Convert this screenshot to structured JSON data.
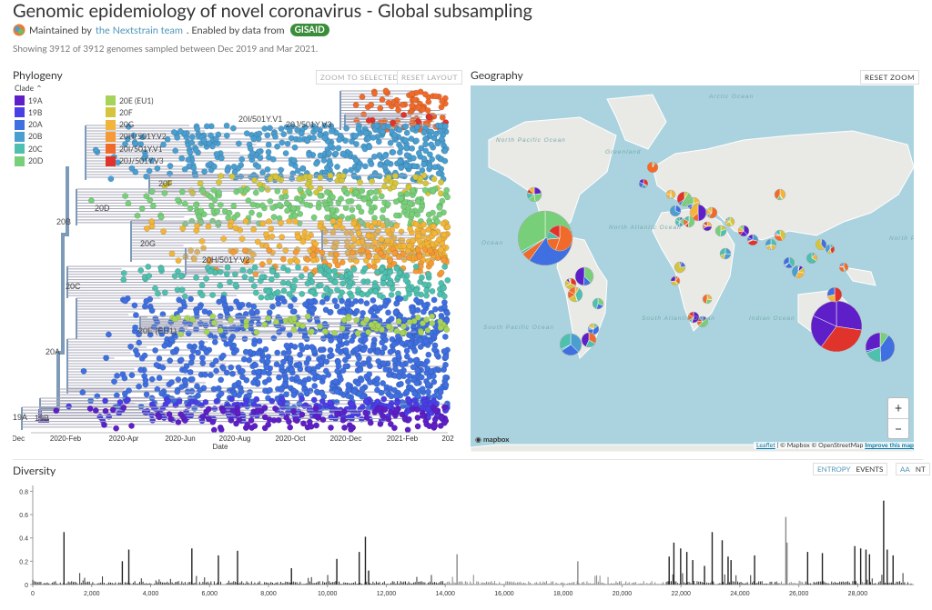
{
  "header": {
    "title": "Genomic epidemiology of novel coronavirus - Global subsampling",
    "maintained_prefix": "Maintained by",
    "maintainer": "the Nextstrain team",
    "enabled_by": ". Enabled by data from",
    "gisaid": "GISAID",
    "showing": "Showing 3912 of 3912 genomes sampled between Dec 2019 and Mar 2021."
  },
  "phylogeny": {
    "title": "Phylogeny",
    "zoom_btn": "ZOOM TO SELECTED",
    "reset_btn": "RESET LAYOUT",
    "legend_title": "Clade",
    "legend": [
      {
        "label": "19A",
        "color": "#5e1fc8"
      },
      {
        "label": "19B",
        "color": "#4a3fe6"
      },
      {
        "label": "20A",
        "color": "#3f6fe0"
      },
      {
        "label": "20B",
        "color": "#4a9ed0"
      },
      {
        "label": "20C",
        "color": "#4fbfae"
      },
      {
        "label": "20D",
        "color": "#78cf7a"
      },
      {
        "label": "20E (EU1)",
        "color": "#a6d45a"
      },
      {
        "label": "20F",
        "color": "#d4c53c"
      },
      {
        "label": "20G",
        "color": "#f2b53a"
      },
      {
        "label": "20H/501Y.V2",
        "color": "#f59a34"
      },
      {
        "label": "20I/501Y.V1",
        "color": "#f06b2b"
      },
      {
        "label": "20J/501Y.V3",
        "color": "#e0332c"
      }
    ],
    "clade_labels": [
      "20I/501Y.V1",
      "20J/501Y.V3",
      "20F",
      "20D",
      "20B",
      "20G",
      "20H/501Y.V2",
      "20C",
      "20E (EU1)",
      "20A",
      "19A",
      "19B"
    ],
    "x_ticks": [
      "Dec",
      "2020-Feb",
      "2020-Apr",
      "2020-Jun",
      "2020-Aug",
      "2020-Oct",
      "2020-Dec",
      "2021-Feb",
      "202"
    ],
    "x_label": "Date"
  },
  "geography": {
    "title": "Geography",
    "reset_btn": "RESET ZOOM",
    "labels": [
      "Arctic Ocean",
      "Greenland",
      "North Atlantic Ocean",
      "North Pacific Ocean",
      "South Atlantic Ocean",
      "South Pacific Ocean",
      "Indian Ocean",
      "North Pacific Ocean",
      "Ocean"
    ],
    "zoom_in": "+",
    "zoom_out": "−",
    "attribution_leaflet": "Leaflet",
    "attribution_rest": "| © Mapbox © OpenStreetMap",
    "attribution_improve": "Improve this map",
    "logo": "mapbox"
  },
  "diversity": {
    "title": "Diversity",
    "toggles": {
      "entropy": "ENTROPY",
      "events": "EVENTS",
      "aa": "AA",
      "nt": "NT"
    }
  },
  "chart_data": {
    "type": "bar",
    "title": "Diversity",
    "xlabel": "",
    "ylabel": "",
    "xlim": [
      0,
      29903
    ],
    "ylim": [
      0,
      0.85
    ],
    "y_ticks": [
      0,
      0.2,
      0.4,
      0.6,
      0.8
    ],
    "x_ticks": [
      "0",
      "2,000",
      "4,000",
      "6,000",
      "8,000",
      "10,000",
      "12,000",
      "14,000",
      "16,000",
      "18,000",
      "20,000",
      "22,000",
      "24,000",
      "26,000",
      "28,000"
    ],
    "peaks": [
      {
        "x": 1060,
        "y": 0.45
      },
      {
        "x": 3040,
        "y": 0.2
      },
      {
        "x": 3260,
        "y": 0.3
      },
      {
        "x": 5400,
        "y": 0.31
      },
      {
        "x": 6300,
        "y": 0.25
      },
      {
        "x": 6950,
        "y": 0.29
      },
      {
        "x": 8780,
        "y": 0.14
      },
      {
        "x": 10320,
        "y": 0.22
      },
      {
        "x": 11080,
        "y": 0.28
      },
      {
        "x": 11290,
        "y": 0.41
      },
      {
        "x": 11400,
        "y": 0.12
      },
      {
        "x": 14400,
        "y": 0.26
      },
      {
        "x": 18500,
        "y": 0.2
      },
      {
        "x": 21600,
        "y": 0.24
      },
      {
        "x": 21760,
        "y": 0.36
      },
      {
        "x": 21990,
        "y": 0.31
      },
      {
        "x": 22200,
        "y": 0.28
      },
      {
        "x": 22400,
        "y": 0.21
      },
      {
        "x": 22800,
        "y": 0.16
      },
      {
        "x": 23060,
        "y": 0.45
      },
      {
        "x": 23400,
        "y": 0.38
      },
      {
        "x": 23600,
        "y": 0.24
      },
      {
        "x": 23700,
        "y": 0.21
      },
      {
        "x": 24500,
        "y": 0.25
      },
      {
        "x": 25560,
        "y": 0.58
      },
      {
        "x": 25600,
        "y": 0.36
      },
      {
        "x": 26300,
        "y": 0.28
      },
      {
        "x": 26800,
        "y": 0.27
      },
      {
        "x": 27900,
        "y": 0.33
      },
      {
        "x": 28100,
        "y": 0.31
      },
      {
        "x": 28280,
        "y": 0.3
      },
      {
        "x": 28400,
        "y": 0.26
      },
      {
        "x": 28880,
        "y": 0.72
      },
      {
        "x": 29000,
        "y": 0.3
      },
      {
        "x": 29200,
        "y": 0.25
      }
    ]
  }
}
